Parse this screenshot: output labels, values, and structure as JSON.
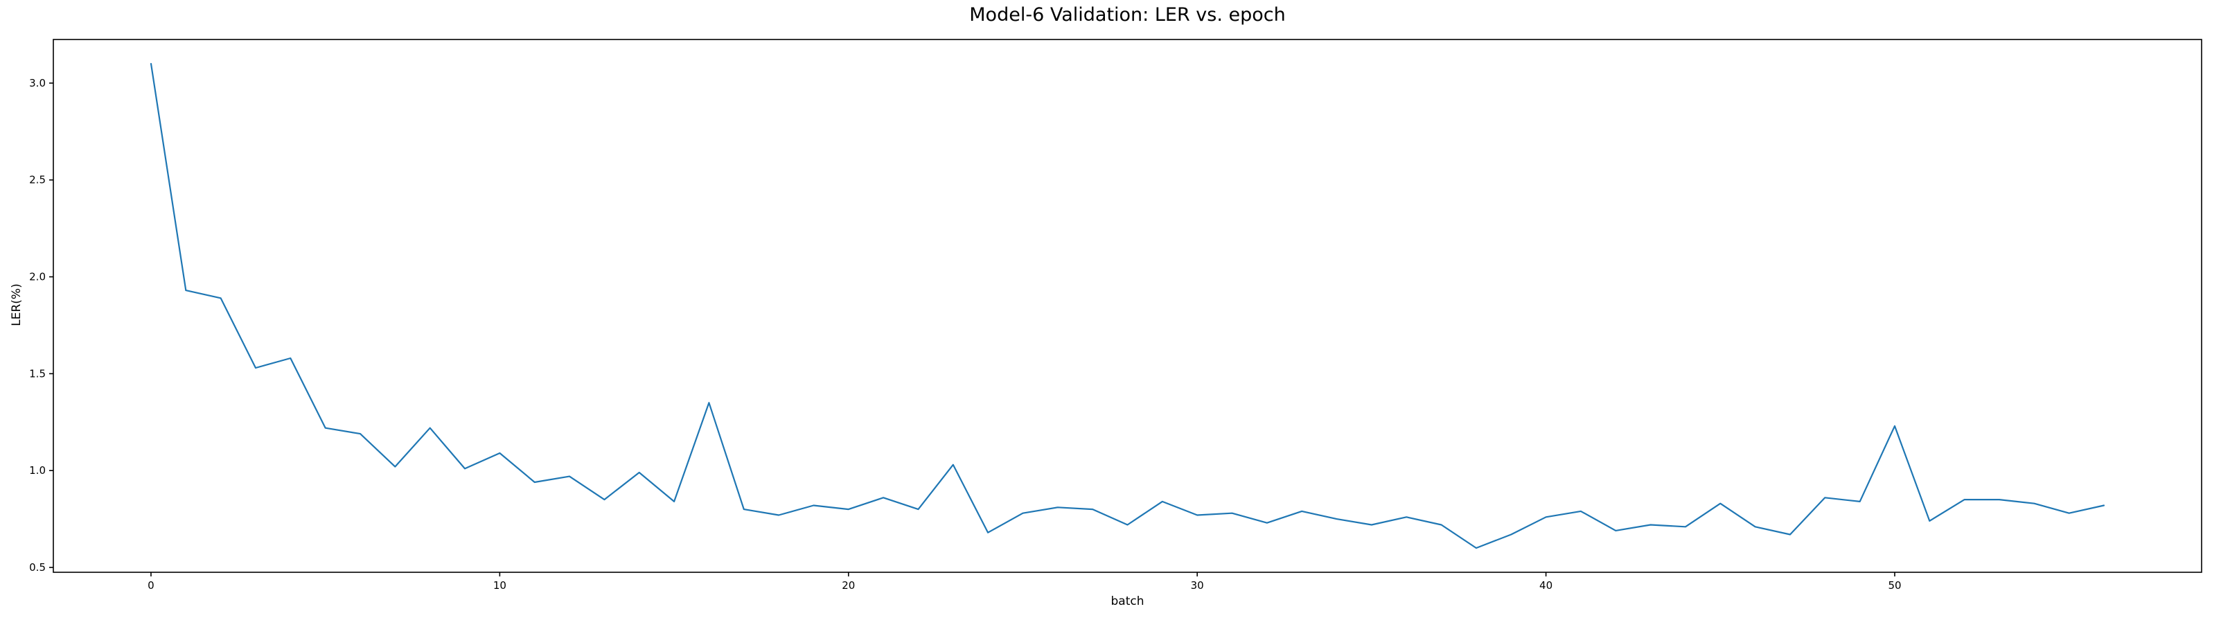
{
  "chart_data": {
    "type": "line",
    "title": "Model-6 Validation: LER vs. epoch",
    "xlabel": "batch",
    "ylabel": "LER(%)",
    "x": [
      0,
      1,
      2,
      3,
      4,
      5,
      6,
      7,
      8,
      9,
      10,
      11,
      12,
      13,
      14,
      15,
      16,
      17,
      18,
      19,
      20,
      21,
      22,
      23,
      24,
      25,
      26,
      27,
      28,
      29,
      30,
      31,
      32,
      33,
      34,
      35,
      36,
      37,
      38,
      39,
      40,
      41,
      42,
      43,
      44,
      45,
      46,
      47,
      48,
      49,
      50,
      51,
      52,
      53,
      54,
      55,
      56
    ],
    "values": [
      3.1,
      1.93,
      1.89,
      1.53,
      1.58,
      1.22,
      1.19,
      1.02,
      1.22,
      1.01,
      1.09,
      0.94,
      0.97,
      0.85,
      0.99,
      0.84,
      1.35,
      0.8,
      0.77,
      0.82,
      0.8,
      0.86,
      0.8,
      1.03,
      0.68,
      0.78,
      0.81,
      0.8,
      0.72,
      0.84,
      0.77,
      0.78,
      0.73,
      0.79,
      0.75,
      0.72,
      0.76,
      0.72,
      0.6,
      0.67,
      0.76,
      0.79,
      0.69,
      0.72,
      0.71,
      0.83,
      0.71,
      0.67,
      0.86,
      0.84,
      1.23,
      0.74,
      0.85,
      0.85,
      0.83,
      0.78,
      0.82
    ],
    "xticks": [
      0,
      10,
      20,
      30,
      40,
      50
    ],
    "yticks": [
      "0.5",
      "1.0",
      "1.5",
      "2.0",
      "2.5",
      "3.0"
    ],
    "xlim": [
      -2.8,
      58.8
    ],
    "ylim": [
      0.475,
      3.225
    ],
    "line_color": "#1f77b4",
    "axis_color": "#000000",
    "background": "#ffffff",
    "grid": false,
    "legend_position": "none"
  }
}
